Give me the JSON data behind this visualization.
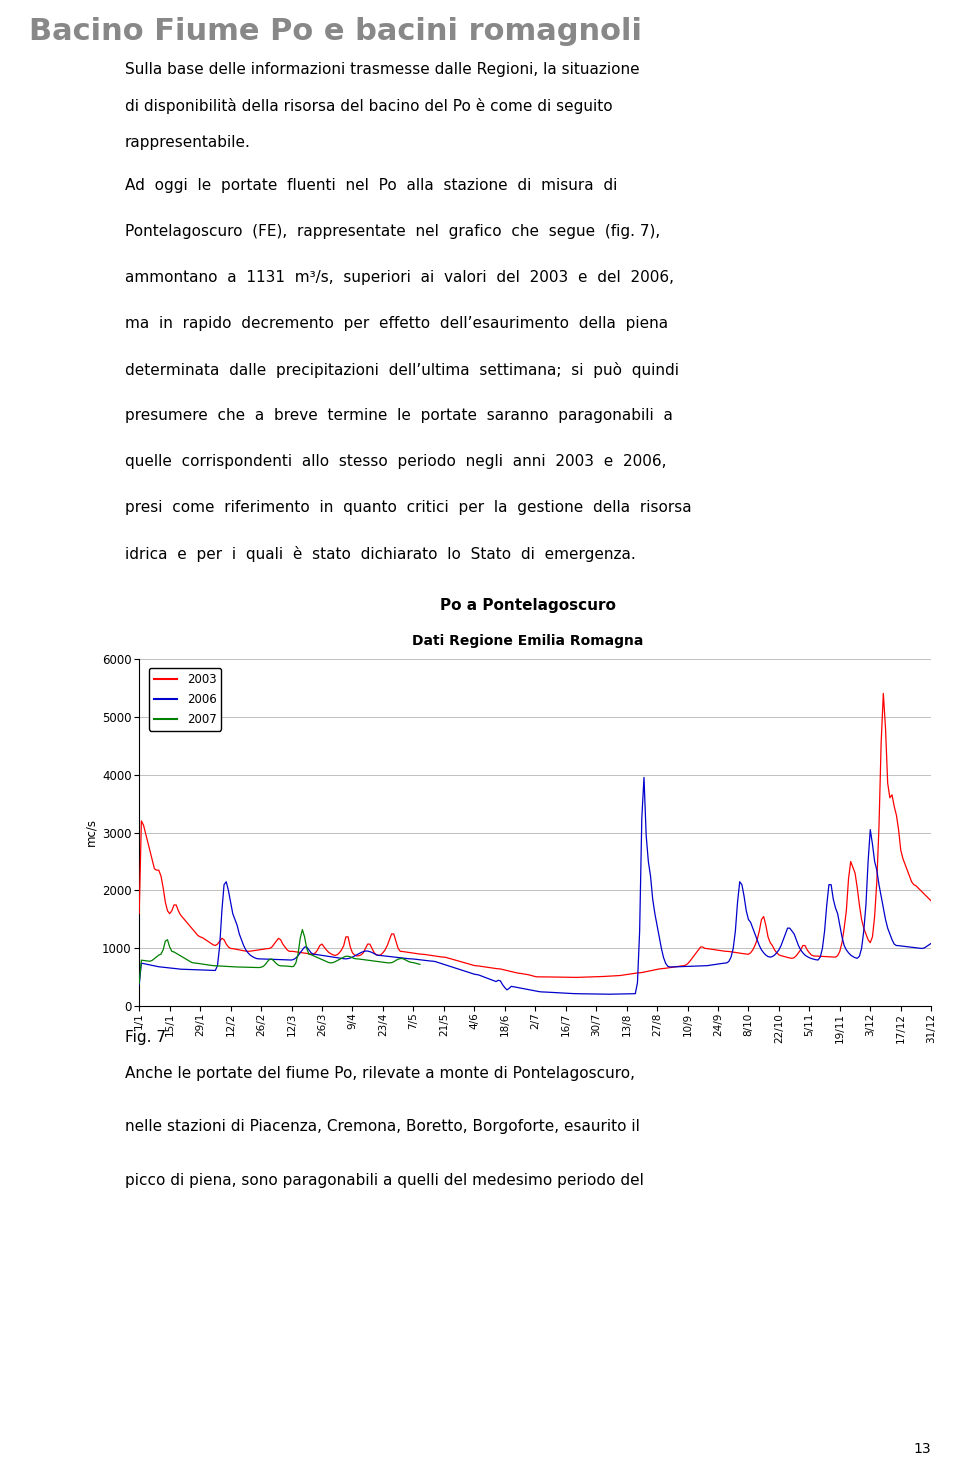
{
  "title": "Bacino Fiume Po e bacini romagnoli",
  "page_number": "13",
  "chart_title": "Po a Pontelagoscuro",
  "chart_subtitle": "Dati Regione Emilia Romagna",
  "ylabel": "mc/s",
  "ylim": [
    0,
    6000
  ],
  "yticks": [
    0,
    1000,
    2000,
    3000,
    4000,
    5000,
    6000
  ],
  "fig_label": "Fig. 7",
  "xtick_labels": [
    "1/1",
    "15/1",
    "29/1",
    "12/2",
    "26/2",
    "12/3",
    "26/3",
    "9/4",
    "23/4",
    "7/5",
    "21/5",
    "4/6",
    "18/6",
    "2/7",
    "16/7",
    "30/7",
    "13/8",
    "27/8",
    "10/9",
    "24/9",
    "8/10",
    "22/10",
    "5/11",
    "19/11",
    "3/12",
    "17/12",
    "31/12"
  ],
  "background_color": "#ffffff",
  "text_color": "#000000",
  "series_colors": {
    "2003": "#ff0000",
    "2006": "#0000cc",
    "2007": "#008000"
  },
  "grid_color": "#c0c0c0",
  "title_color": "#888888",
  "title_fontsize": 22,
  "body_fontsize": 11,
  "chart_title_fontsize": 11,
  "chart_subtitle_fontsize": 10
}
